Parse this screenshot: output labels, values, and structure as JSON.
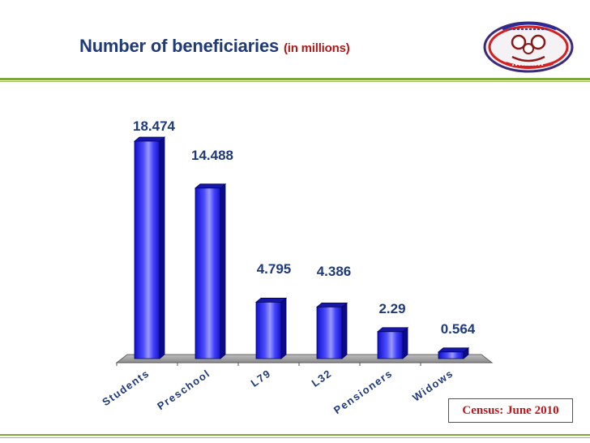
{
  "header": {
    "title_main": "Number of beneficiaries",
    "title_unit": "(in millions)"
  },
  "logo": {
    "icon": "family-emblem-icon"
  },
  "colors": {
    "title": "#1f3a7a",
    "unit": "#b01818",
    "bar": "#2b2bff",
    "bar_dark": "#0a0a8c",
    "accent_line": "#7fa83a",
    "note_text": "#c0141a"
  },
  "chart_data": {
    "type": "bar",
    "title": "Number of beneficiaries (in millions)",
    "categories": [
      "Students",
      "Preschool",
      "L79",
      "L32",
      "Pensioners",
      "Widows"
    ],
    "values": [
      18.474,
      14.488,
      4.795,
      4.386,
      2.29,
      0.564
    ],
    "value_labels": [
      "18.474",
      "14.488",
      "4.795",
      "4.386",
      "2.29",
      "0.564"
    ],
    "xlabel": "",
    "ylabel": "",
    "ylim": [
      0,
      20
    ],
    "grid": false,
    "legend": "none"
  },
  "footnote": {
    "text": "Census: June 2010"
  }
}
